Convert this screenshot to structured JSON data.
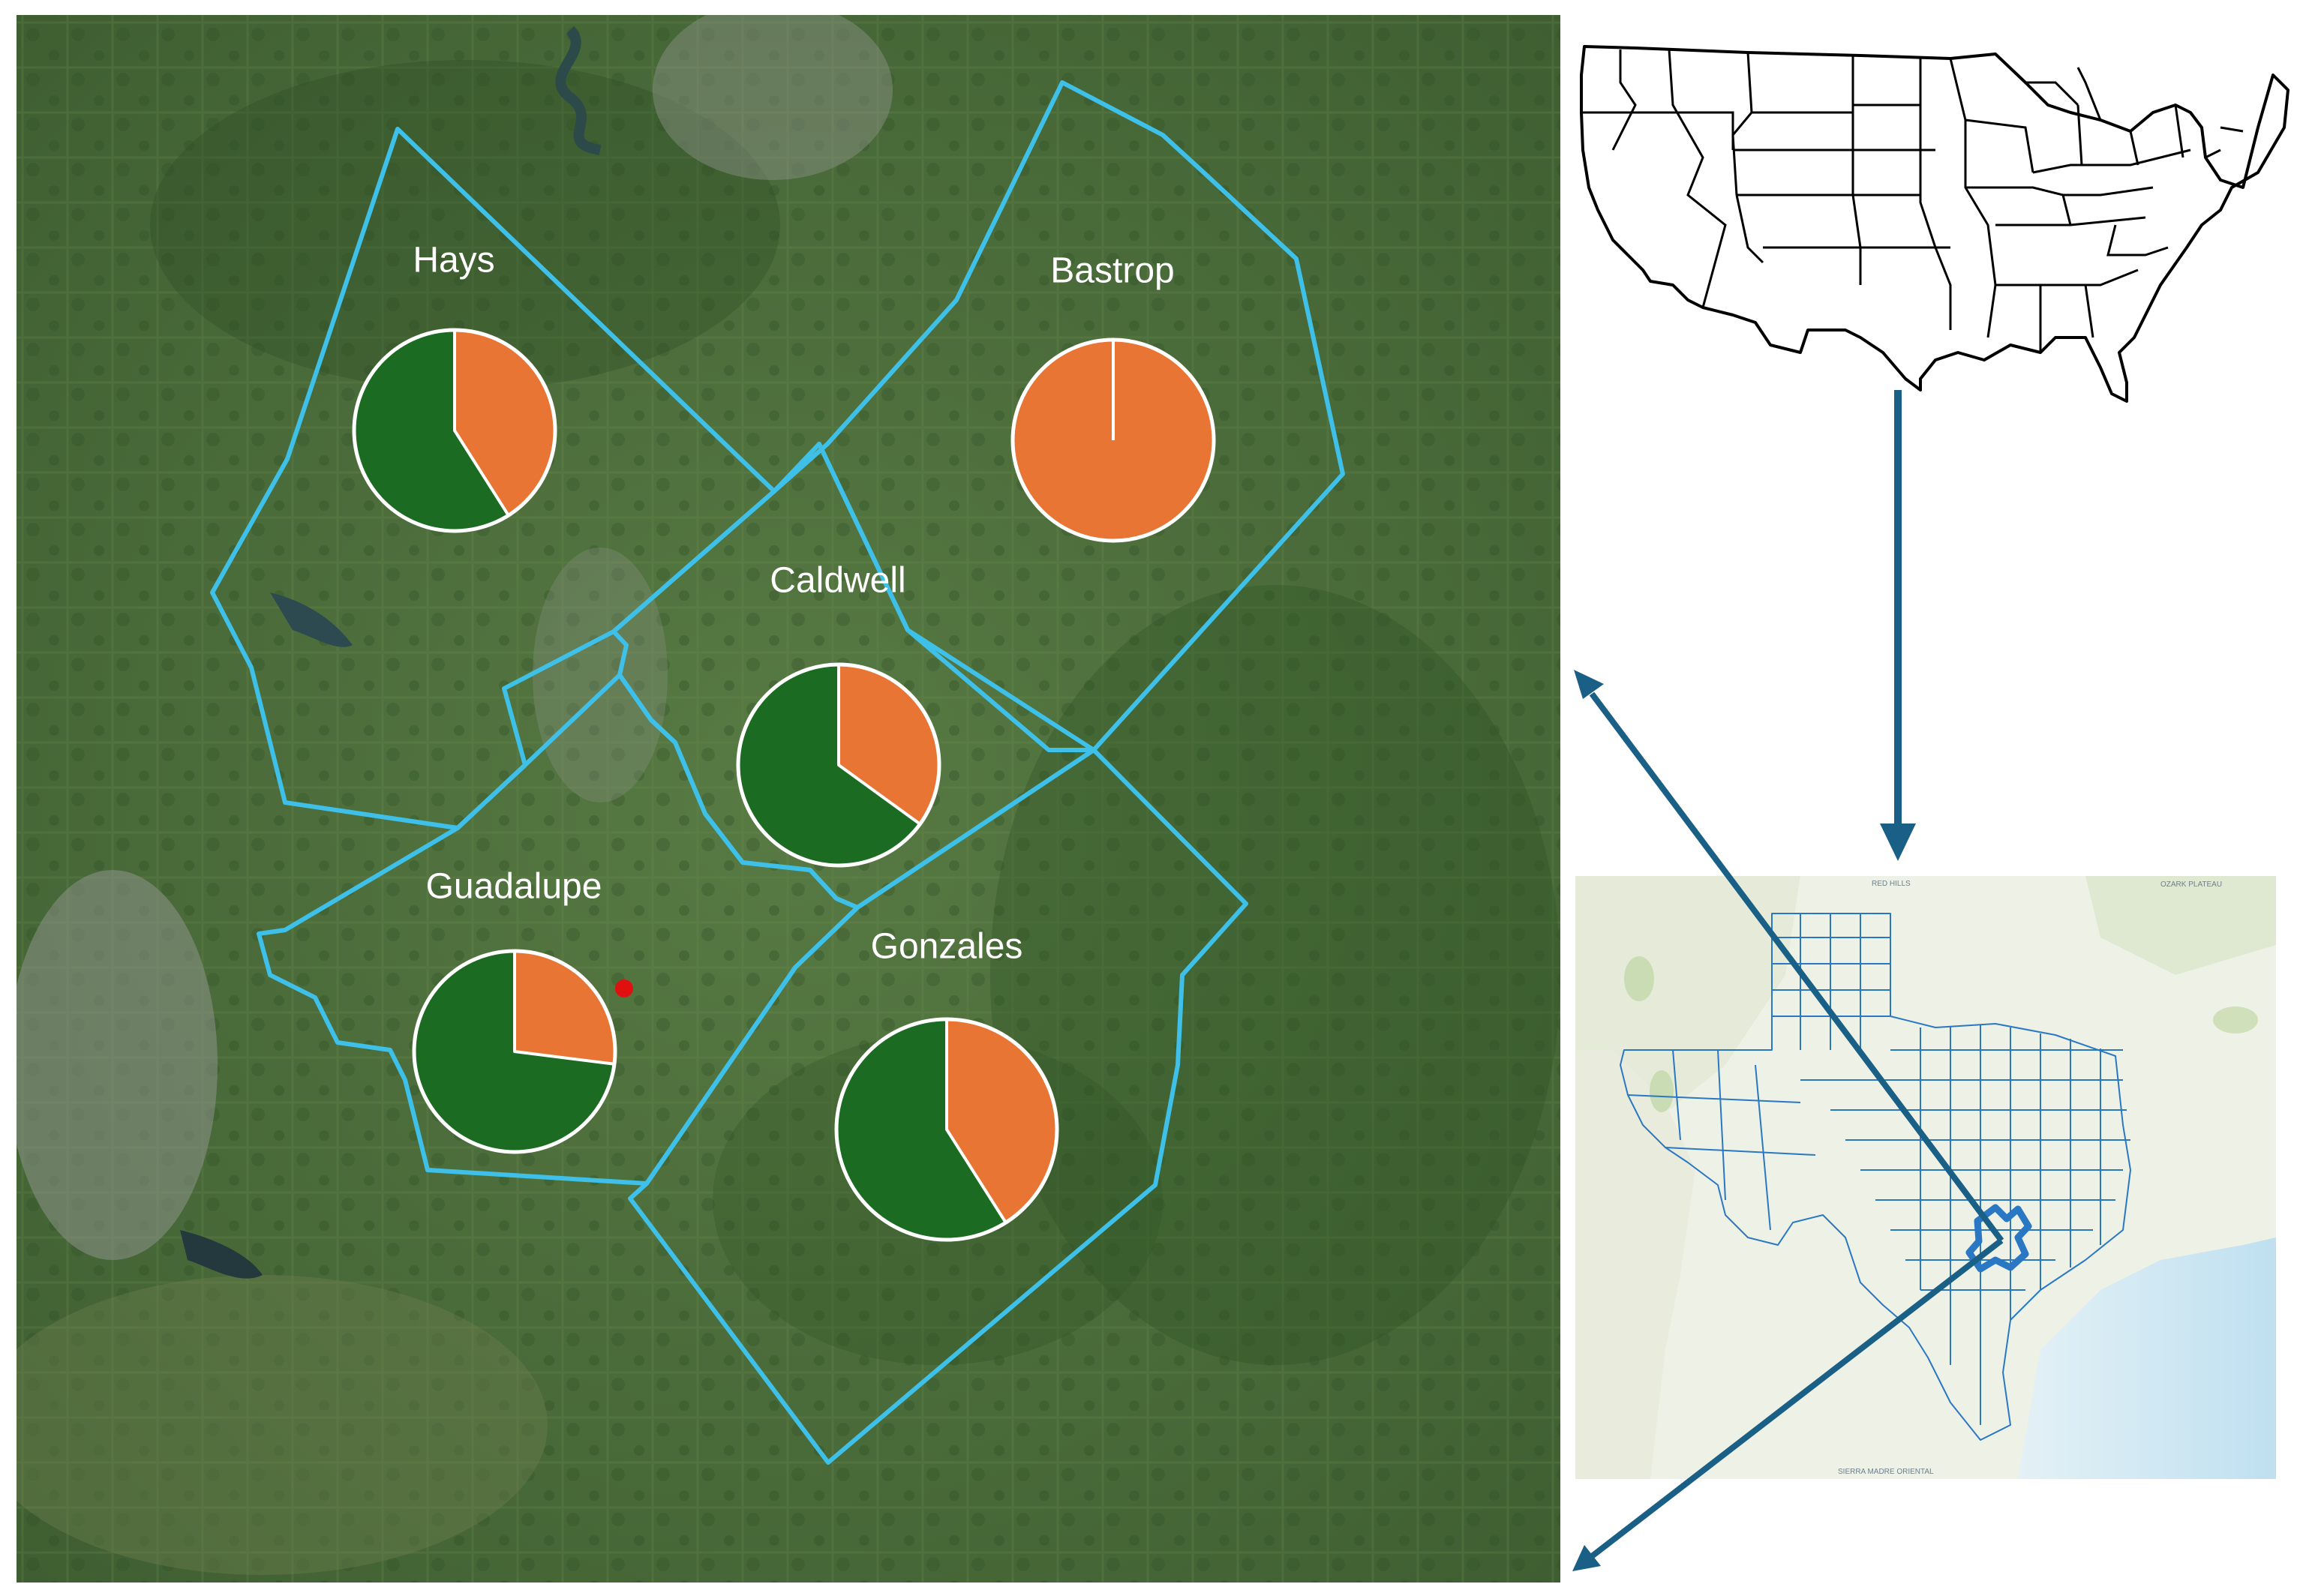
{
  "colors": {
    "county_outline": "#3ec0e8",
    "share_green": "#1c6b22",
    "share_orange": "#e87534",
    "arrow": "#1a5f86",
    "marker_red": "#e01010",
    "satellite_base": "#4b6b3a",
    "inset_county_lines": "#2a78c4",
    "inset_water": "#cde6f2"
  },
  "counties": [
    {
      "name": "Hays",
      "orange_share": 0.41
    },
    {
      "name": "Bastrop",
      "orange_share": 1.0
    },
    {
      "name": "Caldwell",
      "orange_share": 0.35
    },
    {
      "name": "Guadalupe",
      "orange_share": 0.27
    },
    {
      "name": "Gonzales",
      "orange_share": 0.41
    }
  ],
  "icons": {
    "site_marker": "red-dot-marker",
    "us_map": "usa-states-outline",
    "texas_map": "texas-counties-basemap"
  }
}
